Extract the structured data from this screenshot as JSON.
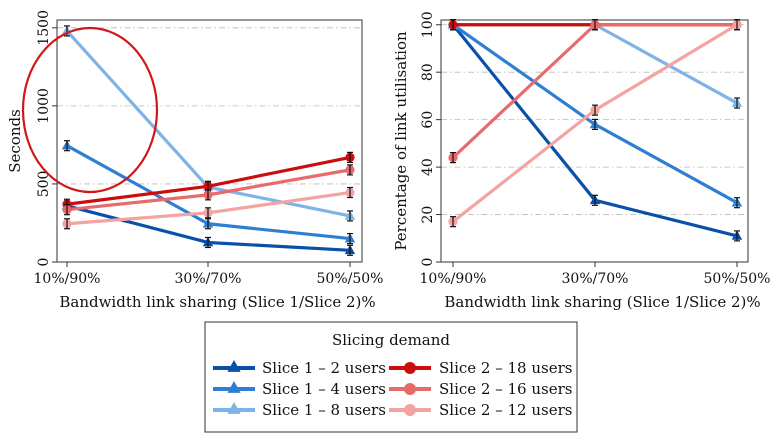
{
  "chart_data": [
    {
      "type": "line",
      "categories": [
        "10%/90%",
        "30%/70%",
        "50%/50%"
      ],
      "xlabel": "Bandwidth link sharing (Slice 1/Slice 2)%",
      "ylabel": "Seconds",
      "ylim": [
        0,
        1550
      ],
      "yticks": [
        0,
        500,
        1000,
        1500
      ],
      "grid": "horizontal dash-dot",
      "series": [
        {
          "name": "Slice 1 – 2 users",
          "values": [
            360,
            125,
            75
          ],
          "color": "#0a50a8",
          "marker": "triangle"
        },
        {
          "name": "Slice 1 – 4 users",
          "values": [
            745,
            245,
            150
          ],
          "color": "#2e7fd2",
          "marker": "triangle"
        },
        {
          "name": "Slice 1 – 8 users",
          "values": [
            1480,
            480,
            295
          ],
          "color": "#7fb2e5",
          "marker": "triangle"
        },
        {
          "name": "Slice 2 – 18 users",
          "values": [
            370,
            485,
            670
          ],
          "color": "#cc0d0d",
          "marker": "circle"
        },
        {
          "name": "Slice 2 – 16 users",
          "values": [
            335,
            430,
            590
          ],
          "color": "#e86a6a",
          "marker": "circle"
        },
        {
          "name": "Slice 2 – 12 users",
          "values": [
            245,
            315,
            445
          ],
          "color": "#f4a3a3",
          "marker": "circle"
        }
      ],
      "annotation": "red-ellipse-highlight"
    },
    {
      "type": "line",
      "categories": [
        "10%/90%",
        "30%/70%",
        "50%/50%"
      ],
      "xlabel": "Bandwidth link sharing (Slice 1/Slice 2)%",
      "ylabel": "Percentage of link utilisation",
      "ylim": [
        0,
        102
      ],
      "yticks": [
        0,
        20,
        40,
        60,
        80,
        100
      ],
      "grid": "horizontal dash-dot",
      "series": [
        {
          "name": "Slice 1 – 2 users",
          "values": [
            100,
            26,
            11
          ],
          "color": "#0a50a8",
          "marker": "triangle"
        },
        {
          "name": "Slice 1 – 4 users",
          "values": [
            100,
            58,
            25
          ],
          "color": "#2e7fd2",
          "marker": "triangle"
        },
        {
          "name": "Slice 1 – 8 users",
          "values": [
            100,
            100,
            67
          ],
          "color": "#7fb2e5",
          "marker": "triangle"
        },
        {
          "name": "Slice 2 – 18 users",
          "values": [
            100,
            100,
            100
          ],
          "color": "#cc0d0d",
          "marker": "circle"
        },
        {
          "name": "Slice 2 – 16 users",
          "values": [
            44,
            100,
            100
          ],
          "color": "#e86a6a",
          "marker": "circle"
        },
        {
          "name": "Slice 2 – 12 users",
          "values": [
            17,
            64,
            100
          ],
          "color": "#f4a3a3",
          "marker": "circle"
        }
      ]
    }
  ],
  "legend": {
    "title": "Slicing demand",
    "placement": "bottom-center"
  }
}
